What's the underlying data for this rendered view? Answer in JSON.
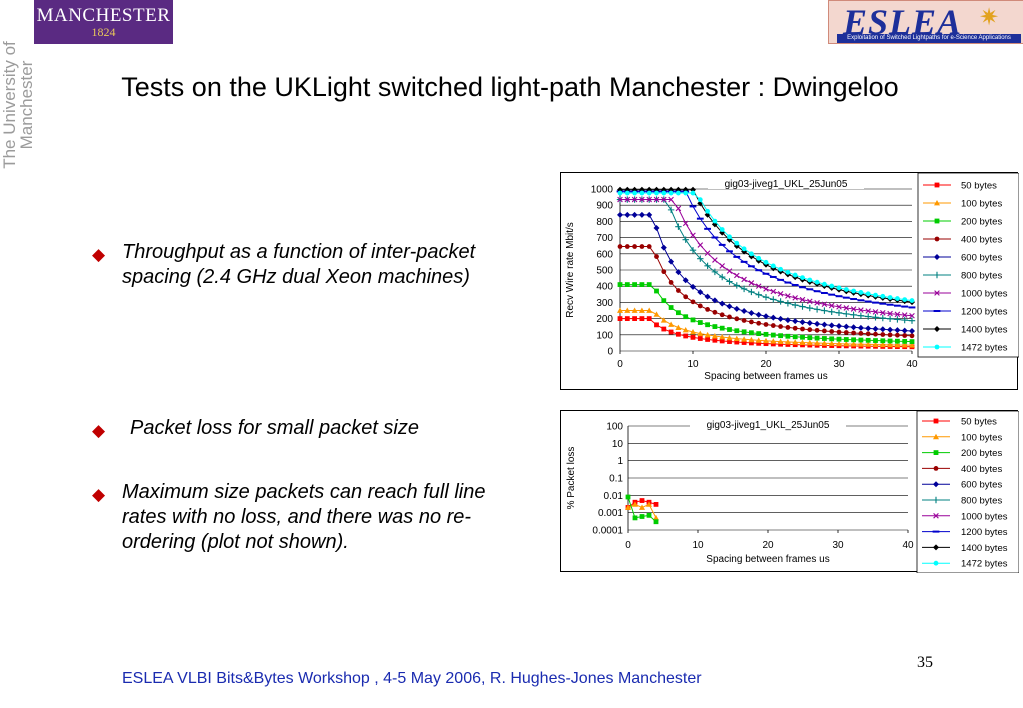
{
  "logos": {
    "manchester_name": "MANCHESTER",
    "manchester_year": "1824",
    "side_text": "The University of Manchester",
    "eslea_name": "ESLEA",
    "eslea_tagline": "Exploitation of Switched Lightpaths for e-Science Applications"
  },
  "title": "Tests on the UKLight switched light-path Manchester : Dwingeloo",
  "bullets": [
    "Throughput as a function of inter-packet spacing (2.4 GHz dual Xeon machines)",
    "Packet loss for small packet size",
    "Maximum size packets can reach full line rates with no loss, and there was no re-ordering (plot not shown)."
  ],
  "page_number": "35",
  "footer": "ESLEA VLBI Bits&Bytes Workshop , 4-5 May 2006,  R. Hughes-Jones  Manchester",
  "chart_data": [
    {
      "type": "line",
      "title": "gig03-jiveg1_UKL_25Jun05",
      "xlabel": "Spacing between frames us",
      "ylabel": "Recv Wire rate Mbit/s",
      "xlim": [
        0,
        40
      ],
      "ylim": [
        0,
        1000
      ],
      "x_ticks": [
        0,
        10,
        20,
        30,
        40
      ],
      "y_ticks": [
        0,
        100,
        200,
        300,
        400,
        500,
        600,
        700,
        800,
        900,
        1000
      ],
      "grid": "horizontal",
      "legend": "right",
      "series": [
        {
          "name": "50 bytes",
          "color": "#ff0000",
          "marker": "square",
          "plateau": 200,
          "knee": 4,
          "asym": 6.9
        },
        {
          "name": "100 bytes",
          "color": "#ff9900",
          "marker": "triangle",
          "plateau": 250,
          "knee": 4.5,
          "asym": 8.8
        },
        {
          "name": "200 bytes",
          "color": "#00cc00",
          "marker": "square",
          "plateau": 410,
          "knee": 4.5,
          "asym": 13.5
        },
        {
          "name": "400 bytes",
          "color": "#990000",
          "marker": "circle",
          "plateau": 645,
          "knee": 4.5,
          "asym": 24
        },
        {
          "name": "600 bytes",
          "color": "#000099",
          "marker": "diamond",
          "plateau": 840,
          "knee": 4.5,
          "asym": 33
        },
        {
          "name": "800 bytes",
          "color": "#008080",
          "marker": "plus",
          "plateau": 935,
          "knee": 6.5,
          "asym": 42
        },
        {
          "name": "1000 bytes",
          "color": "#990099",
          "marker": "x",
          "plateau": 935,
          "knee": 7.5,
          "asym": 52
        },
        {
          "name": "1200 bytes",
          "color": "#0000cc",
          "marker": "dash",
          "plateau": 985,
          "knee": 9,
          "asym": 61
        },
        {
          "name": "1400 bytes",
          "color": "#000000",
          "marker": "diamond",
          "plateau": 995,
          "knee": 10,
          "asym": 71
        },
        {
          "name": "1472 bytes",
          "color": "#00ffff",
          "marker": "circle",
          "plateau": 975,
          "knee": 10.5,
          "asym": 75
        }
      ]
    },
    {
      "type": "line",
      "title": "gig03-jiveg1_UKL_25Jun05",
      "xlabel": "Spacing between frames us",
      "ylabel": "% Packet loss",
      "xlim": [
        0,
        40
      ],
      "ylim": [
        0.0001,
        100
      ],
      "yscale": "log",
      "x_ticks": [
        0,
        10,
        20,
        30,
        40
      ],
      "y_ticks": [
        "0.0001",
        "0.001",
        "0.01",
        "0.1",
        "1",
        "10",
        "100"
      ],
      "grid": "horizontal",
      "legend": "right",
      "series": [
        {
          "name": "50 bytes",
          "color": "#ff0000",
          "marker": "square",
          "x": [
            0,
            1,
            2,
            3,
            4
          ],
          "y": [
            0.002,
            0.004,
            0.005,
            0.004,
            0.003
          ]
        },
        {
          "name": "100 bytes",
          "color": "#ff9900",
          "marker": "triangle",
          "x": [
            0,
            1,
            2,
            3,
            4
          ],
          "y": [
            0.002,
            0.003,
            0.002,
            0.003,
            0.0005
          ]
        },
        {
          "name": "200 bytes",
          "color": "#00cc00",
          "marker": "square",
          "x": [
            0,
            1,
            2,
            3,
            4
          ],
          "y": [
            0.008,
            0.0005,
            0.0006,
            0.0007,
            0.0003
          ]
        },
        {
          "name": "400 bytes",
          "x": [],
          "y": [],
          "color": "#990000",
          "marker": "circle"
        },
        {
          "name": "600 bytes",
          "x": [],
          "y": [],
          "color": "#000099",
          "marker": "diamond"
        },
        {
          "name": "800 bytes",
          "x": [],
          "y": [],
          "color": "#008080",
          "marker": "plus"
        },
        {
          "name": "1000 bytes",
          "x": [],
          "y": [],
          "color": "#990099",
          "marker": "x"
        },
        {
          "name": "1200 bytes",
          "x": [],
          "y": [],
          "color": "#0000cc",
          "marker": "dash"
        },
        {
          "name": "1400 bytes",
          "x": [],
          "y": [],
          "color": "#000000",
          "marker": "diamond"
        },
        {
          "name": "1472 bytes",
          "x": [],
          "y": [],
          "color": "#00ffff",
          "marker": "circle"
        }
      ]
    }
  ]
}
